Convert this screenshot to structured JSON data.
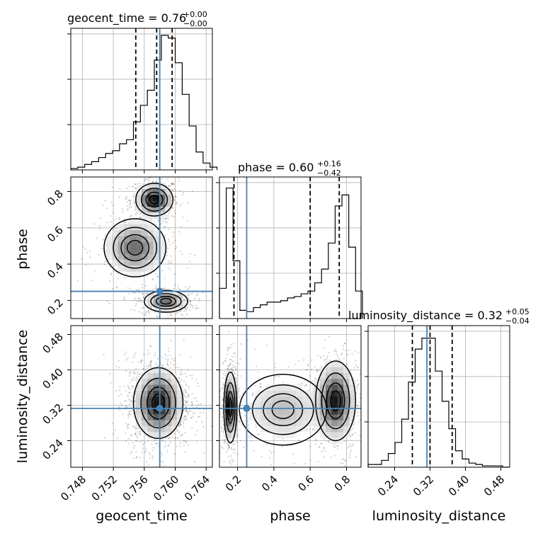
{
  "chart_data": {
    "type": "corner",
    "parameters": [
      "geocent_time",
      "phase",
      "luminosity_distance"
    ],
    "truths": {
      "geocent_time": 0.758,
      "phase": 0.25,
      "luminosity_distance": 0.313
    },
    "truth_color": "#4682b4",
    "ranges": {
      "geocent_time": [
        0.7465,
        0.7648
      ],
      "phase": [
        0.1,
        0.88
      ],
      "luminosity_distance": [
        0.18,
        0.5
      ]
    },
    "ticks": {
      "geocent_time": [
        "0.748",
        "0.752",
        "0.756",
        "0.760",
        "0.764"
      ],
      "phase_y": [
        "0.2",
        "0.4",
        "0.6",
        "0.8"
      ],
      "phase_x": [
        "0.2",
        "0.4",
        "0.6",
        "0.8"
      ],
      "luminosity_distance": [
        "0.24",
        "0.32",
        "0.40",
        "0.48"
      ]
    },
    "titles": {
      "geocent_time": {
        "text": "geocent_time = 0.76",
        "plus": "+0.00",
        "minus": "−0.00"
      },
      "phase": {
        "text": "phase = 0.60",
        "plus": "+0.16",
        "minus": "−0.42"
      },
      "luminosity_distance": {
        "text": "luminosity_distance = 0.32",
        "plus": "+0.05",
        "minus": "−0.04"
      }
    },
    "axis_labels": {
      "x": [
        "geocent_time",
        "phase",
        "luminosity_distance"
      ],
      "y": [
        "phase",
        "luminosity_distance"
      ]
    },
    "quantiles": {
      "geocent_time": [
        0.7549,
        0.7576,
        0.7596
      ],
      "phase": [
        0.18,
        0.6,
        0.76
      ],
      "luminosity_distance": [
        0.28,
        0.32,
        0.37
      ]
    },
    "histograms": {
      "geocent_time": {
        "edges_start": 0.7465,
        "bin_width": 0.0009,
        "counts": [
          0.01,
          0.02,
          0.04,
          0.06,
          0.09,
          0.12,
          0.14,
          0.19,
          0.22,
          0.35,
          0.47,
          0.58,
          0.8,
          0.98,
          0.96,
          0.78,
          0.55,
          0.32,
          0.13,
          0.05,
          0.02
        ]
      },
      "phase": {
        "edges_start": 0.1,
        "bin_width": 0.0375,
        "counts": [
          0.22,
          0.95,
          0.42,
          0.06,
          0.05,
          0.08,
          0.1,
          0.12,
          0.12,
          0.13,
          0.15,
          0.16,
          0.18,
          0.2,
          0.26,
          0.36,
          0.55,
          0.82,
          0.9,
          0.52,
          0.2
        ]
      },
      "luminosity_distance": {
        "edges_start": 0.18,
        "bin_width": 0.0152,
        "counts": [
          0.02,
          0.02,
          0.05,
          0.1,
          0.18,
          0.35,
          0.62,
          0.86,
          0.94,
          0.94,
          0.7,
          0.48,
          0.28,
          0.12,
          0.06,
          0.03,
          0.02,
          0.01,
          0.01,
          0.01,
          0.0
        ]
      }
    },
    "hist_ymax": {
      "geocent_time": 1.0,
      "phase": 1.0,
      "luminosity_distance": 1.0
    },
    "hist_yticks": {
      "geocent_time": [
        0.33,
        0.66,
        0.99
      ],
      "phase": [
        0.33,
        0.66,
        0.99
      ],
      "luminosity_distance": [
        0.33,
        0.66,
        0.99
      ]
    },
    "modes": {
      "geocent_time__phase": [
        {
          "cx": 0.7573,
          "cy": 0.755,
          "sx": 0.0012,
          "sy": 0.045,
          "w": 0.42
        },
        {
          "cx": 0.7588,
          "cy": 0.195,
          "sx": 0.0014,
          "sy": 0.03,
          "w": 0.3
        },
        {
          "cx": 0.7548,
          "cy": 0.49,
          "sx": 0.002,
          "sy": 0.08,
          "w": 0.28
        }
      ],
      "geocent_time__luminosity_distance": [
        {
          "cx": 0.7578,
          "cy": 0.325,
          "sx": 0.0016,
          "sy": 0.04,
          "w": 1.0
        }
      ],
      "phase__luminosity_distance": [
        {
          "cx": 0.16,
          "cy": 0.315,
          "sx": 0.018,
          "sy": 0.04,
          "w": 0.45
        },
        {
          "cx": 0.74,
          "cy": 0.33,
          "sx": 0.055,
          "sy": 0.045,
          "w": 0.4
        },
        {
          "cx": 0.45,
          "cy": 0.31,
          "sx": 0.12,
          "sy": 0.04,
          "w": 0.15
        }
      ]
    }
  }
}
